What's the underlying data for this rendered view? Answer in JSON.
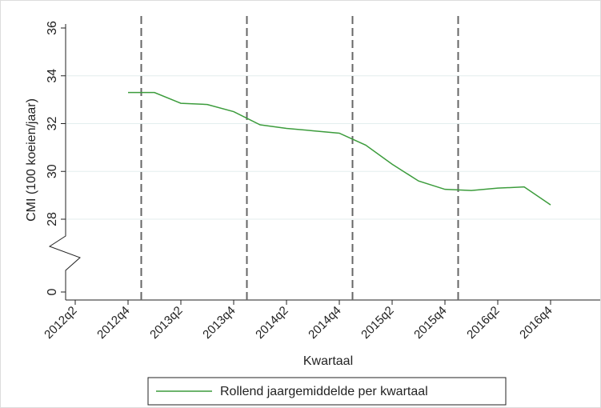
{
  "chart_data": {
    "type": "line",
    "x_label": "Kwartaal",
    "y_label": "CMI (100 koeien/jaar)",
    "categories": [
      "2012q2",
      null,
      "2012q4",
      null,
      "2013q2",
      null,
      "2013q4",
      null,
      "2014q2",
      null,
      "2014q4",
      null,
      "2015q2",
      null,
      "2015q4",
      null,
      "2016q2",
      null,
      "2016q4"
    ],
    "series": [
      {
        "name": "Rollend jaargemiddelde per kwartaal",
        "color": "#3c9c3c",
        "values": [
          null,
          null,
          33.3,
          33.3,
          32.85,
          32.8,
          32.5,
          31.95,
          31.8,
          31.7,
          31.6,
          31.1,
          30.3,
          29.6,
          29.25,
          29.2,
          29.3,
          29.35,
          28.6
        ]
      }
    ],
    "ylim": [
      0,
      36
    ],
    "ybreak": [
      0,
      28
    ],
    "yticks": [
      0,
      28,
      30,
      32,
      34,
      36
    ],
    "grid": true,
    "vlines_after": [
      "2012q4",
      "2013q4",
      "2014q4",
      "2015q4"
    ],
    "legend": "bottom"
  }
}
